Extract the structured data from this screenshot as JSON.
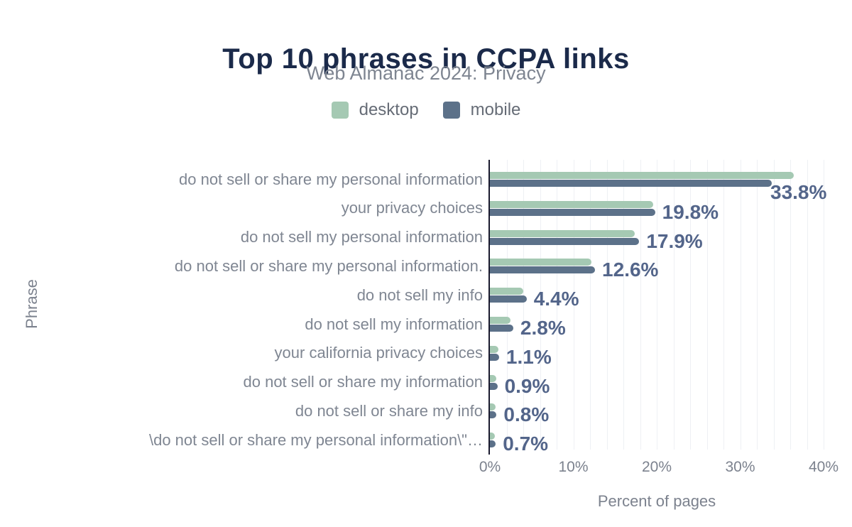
{
  "page": {
    "title": "Top 10 phrases in CCPA links",
    "subtitle": "Web Almanac 2024: Privacy"
  },
  "legend": {
    "items": [
      {
        "label": "desktop",
        "color": "#a5c9b3"
      },
      {
        "label": "mobile",
        "color": "#5c7189"
      }
    ]
  },
  "chart_data": {
    "type": "bar",
    "orientation": "horizontal",
    "title": "Top 10 phrases in CCPA links",
    "subtitle": "Web Almanac 2024: Privacy",
    "xlabel": "Percent of pages",
    "ylabel": "Phrase",
    "xlim": [
      0,
      40
    ],
    "grid": "vertical",
    "gridline_step_pct": 2,
    "legend_position": "top",
    "x_ticks": [
      {
        "value": 0,
        "label": "0%"
      },
      {
        "value": 10,
        "label": "10%"
      },
      {
        "value": 20,
        "label": "20%"
      },
      {
        "value": 30,
        "label": "30%"
      },
      {
        "value": 40,
        "label": "40%"
      }
    ],
    "categories": [
      "do not sell or share my personal information",
      "your privacy choices",
      "do not sell my personal information",
      "do not sell or share my personal information.",
      "do not sell my info",
      "do not sell my information",
      "your california privacy choices",
      "do not sell or share my information",
      "do not sell or share my info",
      "\\do not sell or share my personal information\\\"…"
    ],
    "series": [
      {
        "name": "desktop",
        "color": "#a5c9b3",
        "values": [
          36.4,
          19.6,
          17.4,
          12.2,
          4.0,
          2.5,
          1.0,
          0.8,
          0.7,
          0.6
        ]
      },
      {
        "name": "mobile",
        "color": "#5c7189",
        "values": [
          33.8,
          19.8,
          17.9,
          12.6,
          4.4,
          2.8,
          1.1,
          0.9,
          0.8,
          0.7
        ]
      }
    ],
    "data_labels": [
      "33.8%",
      "19.8%",
      "17.9%",
      "12.6%",
      "4.4%",
      "2.8%",
      "1.1%",
      "0.9%",
      "0.8%",
      "0.7%"
    ],
    "data_labels_series": "mobile"
  },
  "colors": {
    "background": "#ffffff",
    "title": "#1b2a4a",
    "subtitle": "#7e8591",
    "legend_text": "#666c76",
    "category_text": "#7f8692",
    "axis_text": "#7c828e",
    "value_label": "#53658a",
    "axis_line": "#1a1a2e",
    "gridline": "#eef0f4"
  }
}
